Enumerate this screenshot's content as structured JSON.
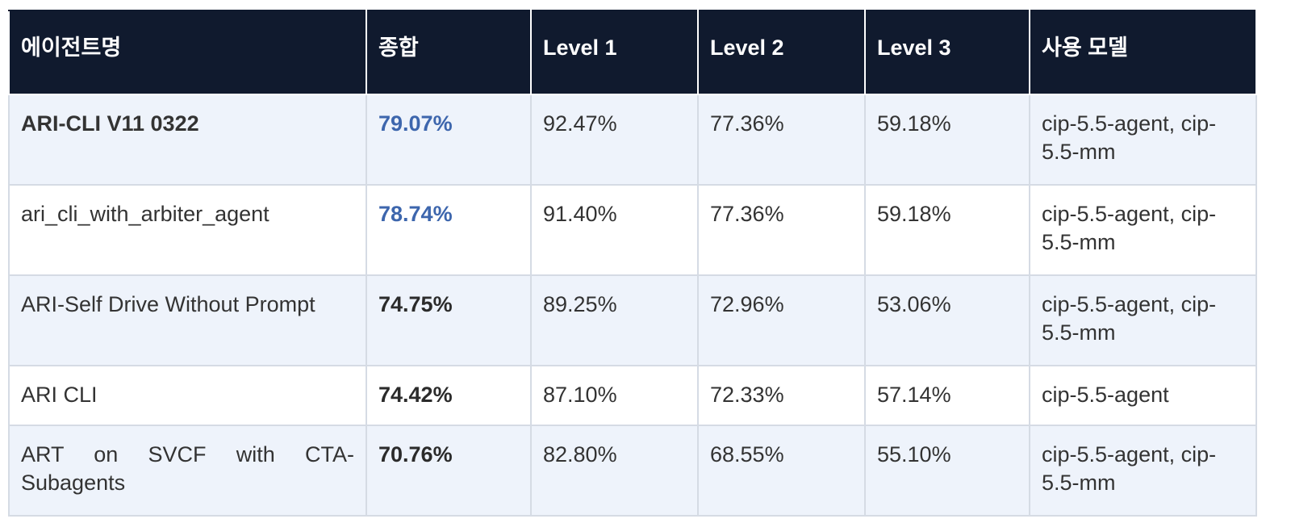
{
  "table": {
    "headers": [
      "에이전트명",
      "종합",
      "Level 1",
      "Level 2",
      "Level 3",
      "사용 모델"
    ],
    "rows": [
      [
        "ARI-CLI V11 0322",
        "79.07%",
        "92.47%",
        "77.36%",
        "59.18%",
        "cip-5.5-agent, cip-5.5-mm"
      ],
      [
        "ari_cli_with_arbiter_agent",
        "78.74%",
        "91.40%",
        "77.36%",
        "59.18%",
        "cip-5.5-agent, cip-5.5-mm"
      ],
      [
        "ARI-Self Drive Without Prompt",
        "74.75%",
        "89.25%",
        "72.96%",
        "53.06%",
        "cip-5.5-agent, cip-5.5-mm"
      ],
      [
        "ARI CLI",
        "74.42%",
        "87.10%",
        "72.33%",
        "57.14%",
        "cip-5.5-agent"
      ],
      [
        "ART on SVCF with CTA-Subagents",
        "70.76%",
        "82.80%",
        "68.55%",
        "55.10%",
        "cip-5.5-agent, cip-5.5-mm"
      ]
    ]
  }
}
